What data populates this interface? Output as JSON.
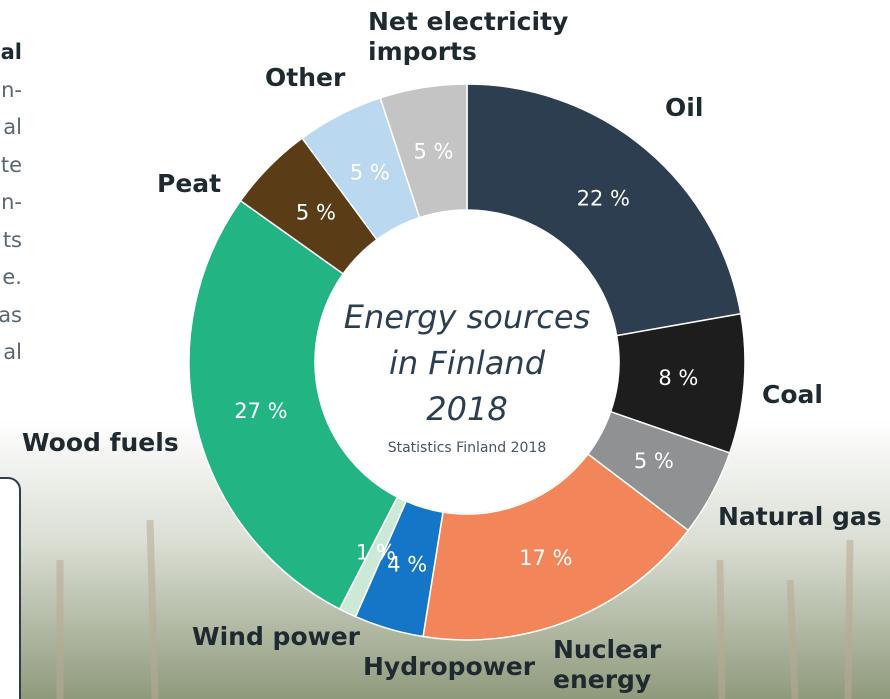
{
  "side_text_fragments": [
    "al",
    "n-",
    "al",
    "te",
    "n-",
    "ts",
    "e.",
    "as",
    "al"
  ],
  "chart_data": {
    "type": "donut",
    "title_lines": [
      "Energy sources",
      "in Finland",
      "2018"
    ],
    "subtitle": "Statistics Finland 2018",
    "categories": [
      "Oil",
      "Coal",
      "Natural gas",
      "Nuclear energy",
      "Hydropower",
      "Wind power",
      "Wood fuels",
      "Peat",
      "Other",
      "Net electricity imports"
    ],
    "values": [
      22,
      8,
      5,
      17,
      4,
      1,
      27,
      5,
      5,
      5
    ],
    "value_labels": [
      "22 %",
      "8 %",
      "5 %",
      "17 %",
      "4 %",
      "1 %",
      "27 %",
      "5 %",
      "5 %",
      "5 %"
    ],
    "colors": [
      "#2c3e50",
      "#1d1d1d",
      "#8f9193",
      "#f2865a",
      "#1575c6",
      "#cbe9d6",
      "#22b583",
      "#5a3c16",
      "#bad8ef",
      "#c4c4c4"
    ]
  }
}
